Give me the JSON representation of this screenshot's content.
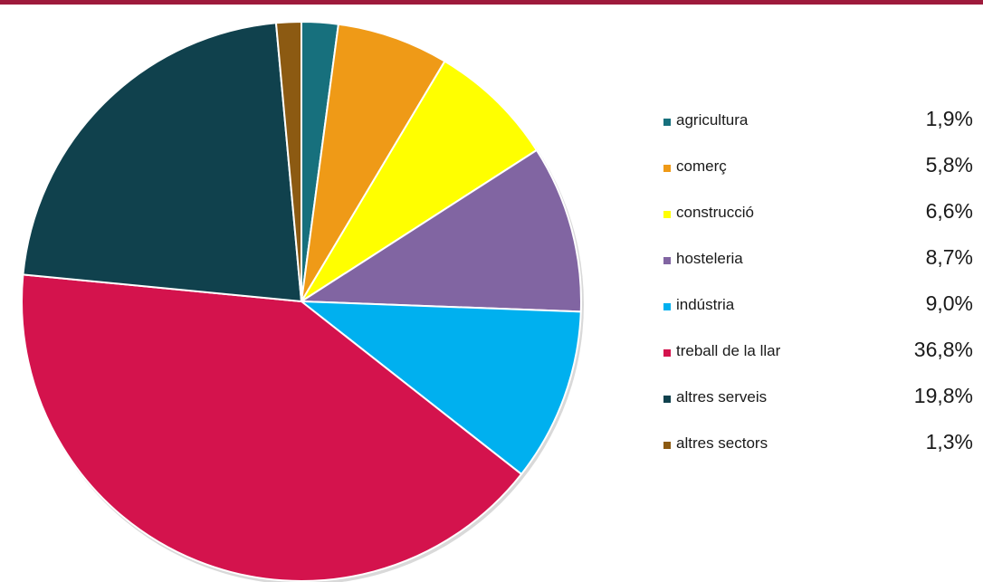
{
  "chart_data": {
    "type": "pie",
    "title": "",
    "slices": [
      {
        "label": "agricultura",
        "value": 1.9,
        "display": "1,9%",
        "color": "#17707d"
      },
      {
        "label": "comerç",
        "value": 5.8,
        "display": "5,8%",
        "color": "#ef9a17"
      },
      {
        "label": "construcció",
        "value": 6.6,
        "display": "6,6%",
        "color": "#ffff00"
      },
      {
        "label": "hosteleria",
        "value": 8.7,
        "display": "8,7%",
        "color": "#8165a2"
      },
      {
        "label": "indústria",
        "value": 9.0,
        "display": "9,0%",
        "color": "#00b0ef"
      },
      {
        "label": "treball de la llar",
        "value": 36.8,
        "display": "36,8%",
        "color": "#d4134d"
      },
      {
        "label": "altres serveis",
        "value": 19.8,
        "display": "19,8%",
        "color": "#10414d"
      },
      {
        "label": "altres sectors",
        "value": 1.3,
        "display": "1,3%",
        "color": "#8c5a12"
      }
    ],
    "legend_position": "right"
  },
  "header": {
    "bar_color": "#9e1a3c"
  }
}
